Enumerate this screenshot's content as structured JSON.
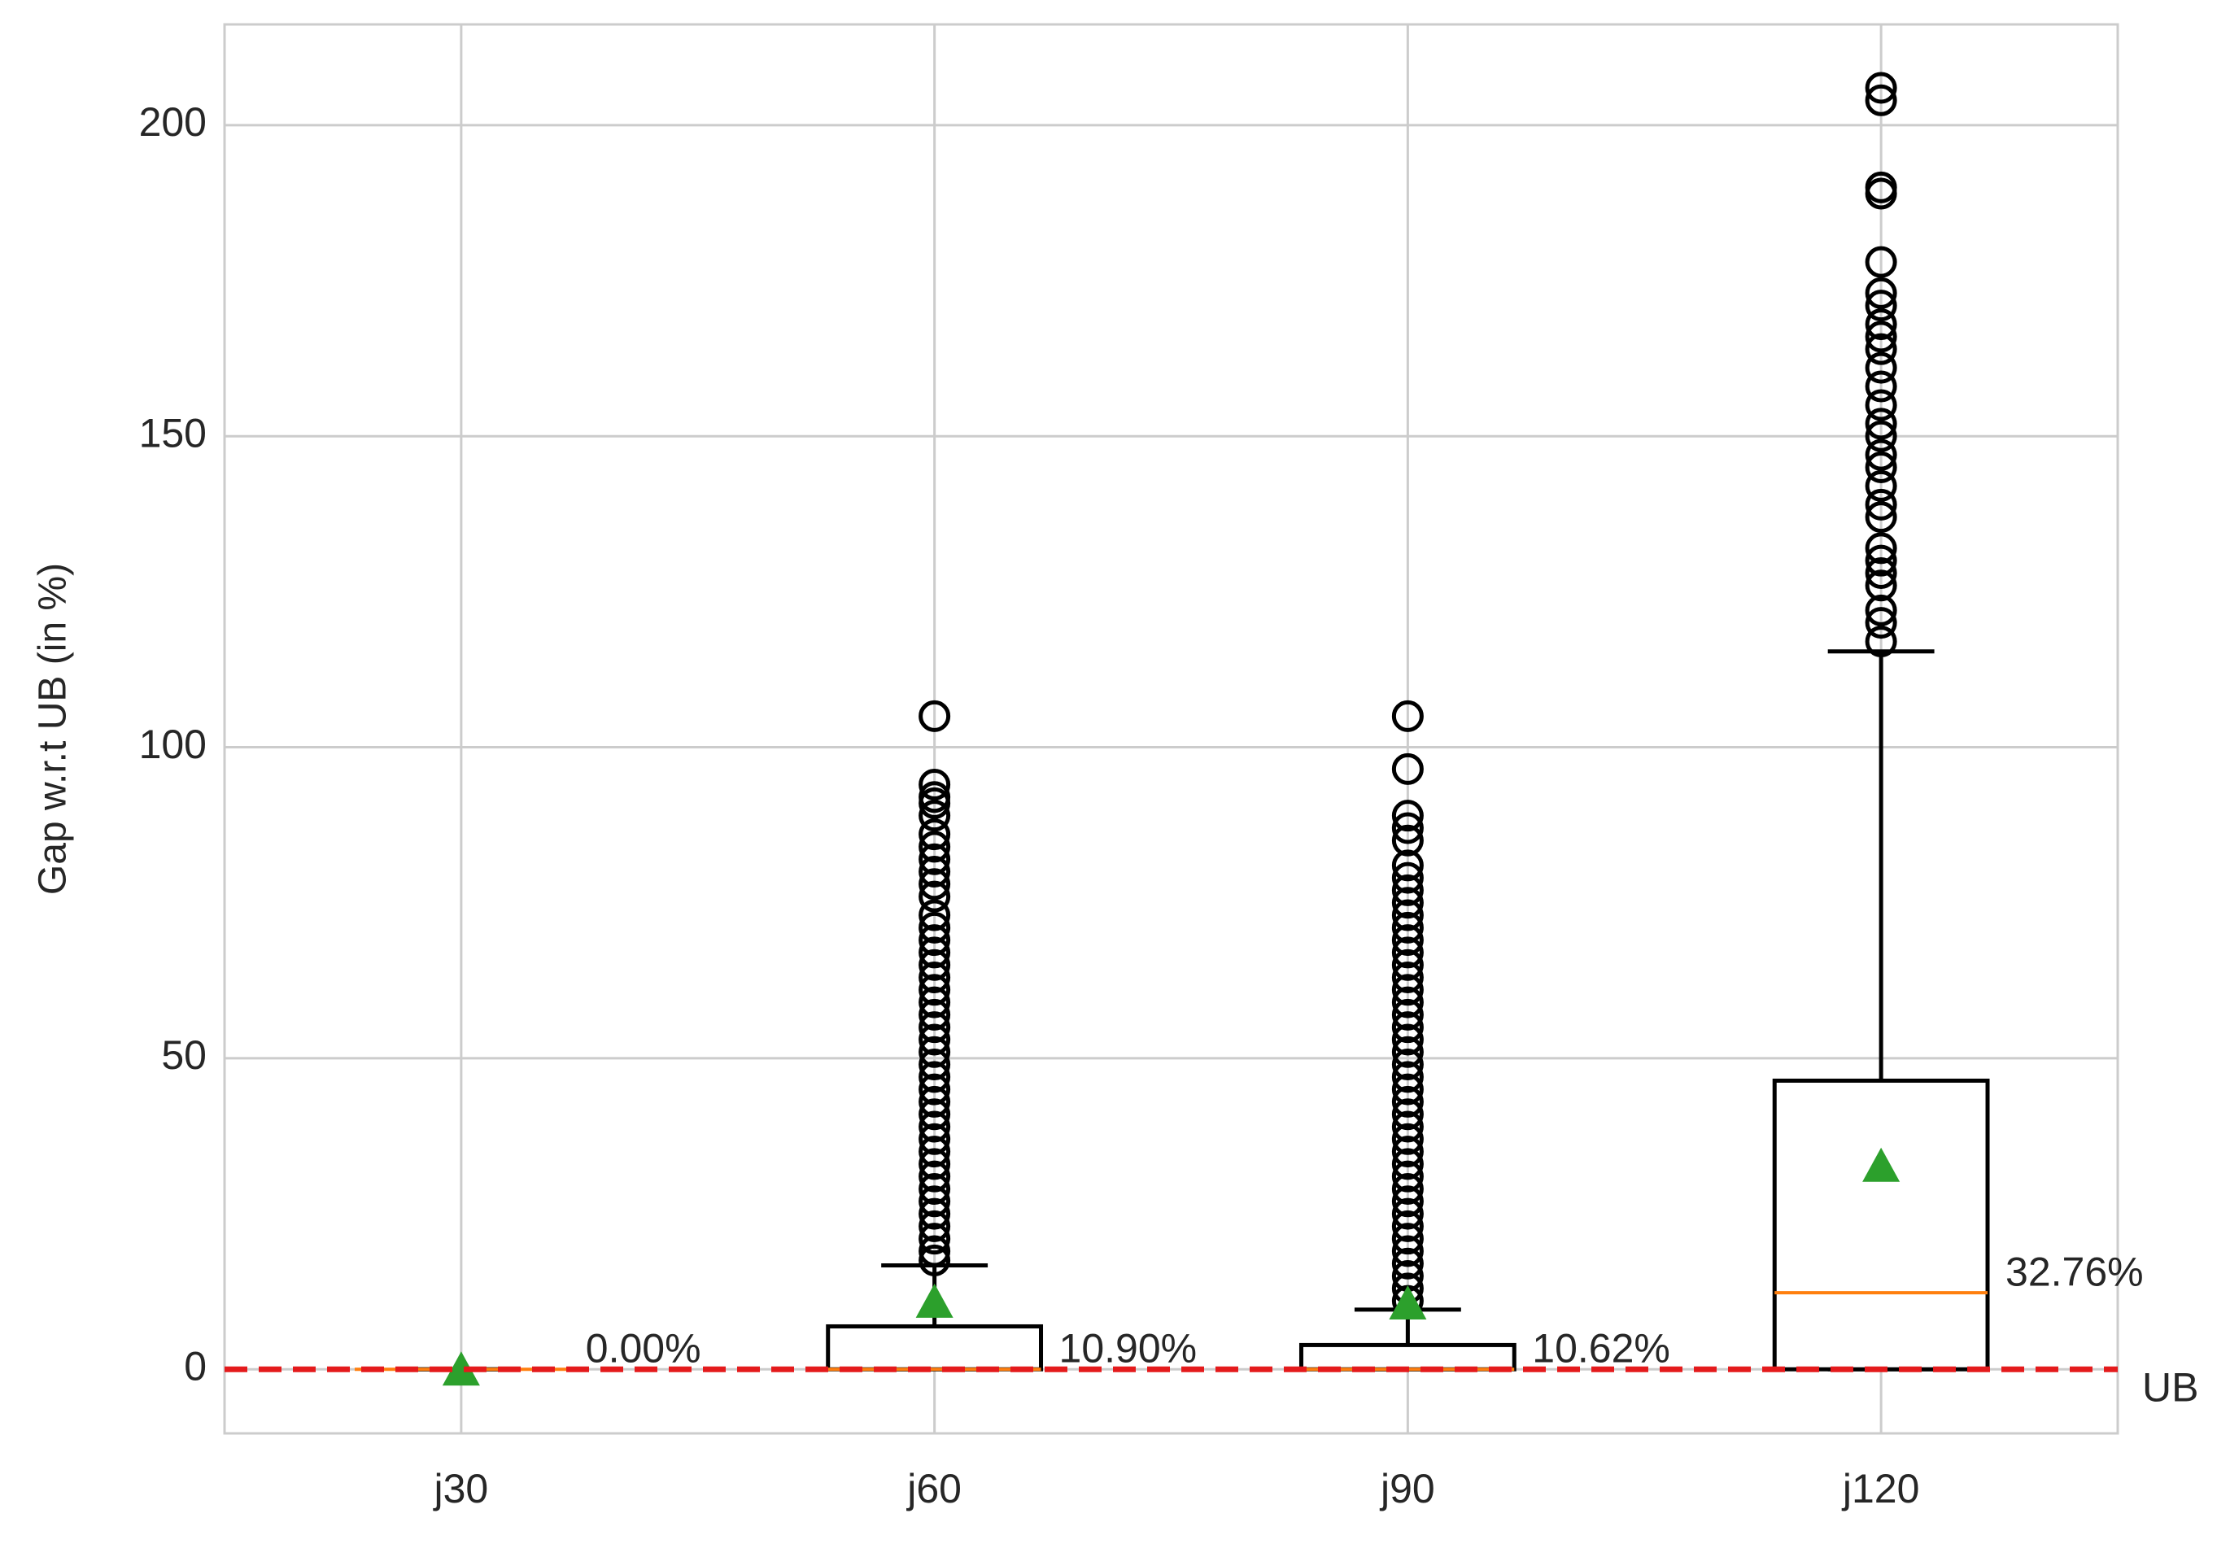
{
  "chart_data": {
    "type": "box",
    "y_label": "Gap w.r.t UB (in %)",
    "categories": [
      "j30",
      "j60",
      "j90",
      "j120"
    ],
    "boxes": [
      {
        "whisker_low": 0,
        "q1": 0,
        "median": 0,
        "q3": 0,
        "whisker_high": 0,
        "mean": 0,
        "mean_label": "0.00%",
        "outliers": []
      },
      {
        "whisker_low": 0,
        "q1": 0,
        "median": 0,
        "q3": 6.9,
        "whisker_high": 16.7,
        "mean": 10.9,
        "mean_label": "10.90%",
        "outliers": [
          105,
          94,
          92,
          91,
          89,
          86,
          84,
          82,
          80,
          78,
          76,
          73,
          71,
          69,
          67,
          65,
          63,
          61,
          59,
          57,
          55,
          53,
          51,
          49,
          47,
          45,
          43,
          41,
          39,
          37,
          35,
          33,
          31,
          29,
          27,
          25,
          23,
          21,
          19,
          17.5
        ]
      },
      {
        "whisker_low": 0,
        "q1": 0,
        "median": 0,
        "q3": 3.9,
        "whisker_high": 9.6,
        "mean": 10.62,
        "mean_label": "10.62%",
        "outliers": [
          105,
          96.5,
          89,
          87,
          85,
          81,
          79,
          77,
          75,
          73,
          71,
          69,
          67,
          65,
          63,
          61,
          59,
          57,
          55,
          53,
          51,
          49,
          47,
          45,
          43,
          41,
          39,
          37,
          35,
          33,
          31,
          29,
          27,
          25,
          23,
          21,
          19,
          17,
          15,
          13,
          11
        ]
      },
      {
        "whisker_low": 0,
        "q1": 0,
        "median": 12.3,
        "q3": 46.4,
        "whisker_high": 115.4,
        "mean": 32.76,
        "mean_label": "32.76%",
        "outliers": [
          206,
          204,
          190,
          189,
          178,
          173,
          171,
          168,
          166,
          164,
          161,
          158,
          155,
          152,
          150,
          147,
          145,
          142,
          139,
          137,
          132,
          130,
          128,
          126,
          122,
          120,
          117
        ]
      }
    ],
    "box_color": "#000000",
    "median_color": "#ff7f0e",
    "mean_color": "#2ca02c",
    "reference_line": {
      "value": 0,
      "label": "UB",
      "color": "#e41a1c"
    },
    "ylim": [
      -10.3,
      216.2
    ],
    "yticks": [
      0,
      50,
      100,
      150,
      200
    ],
    "grid": true
  }
}
